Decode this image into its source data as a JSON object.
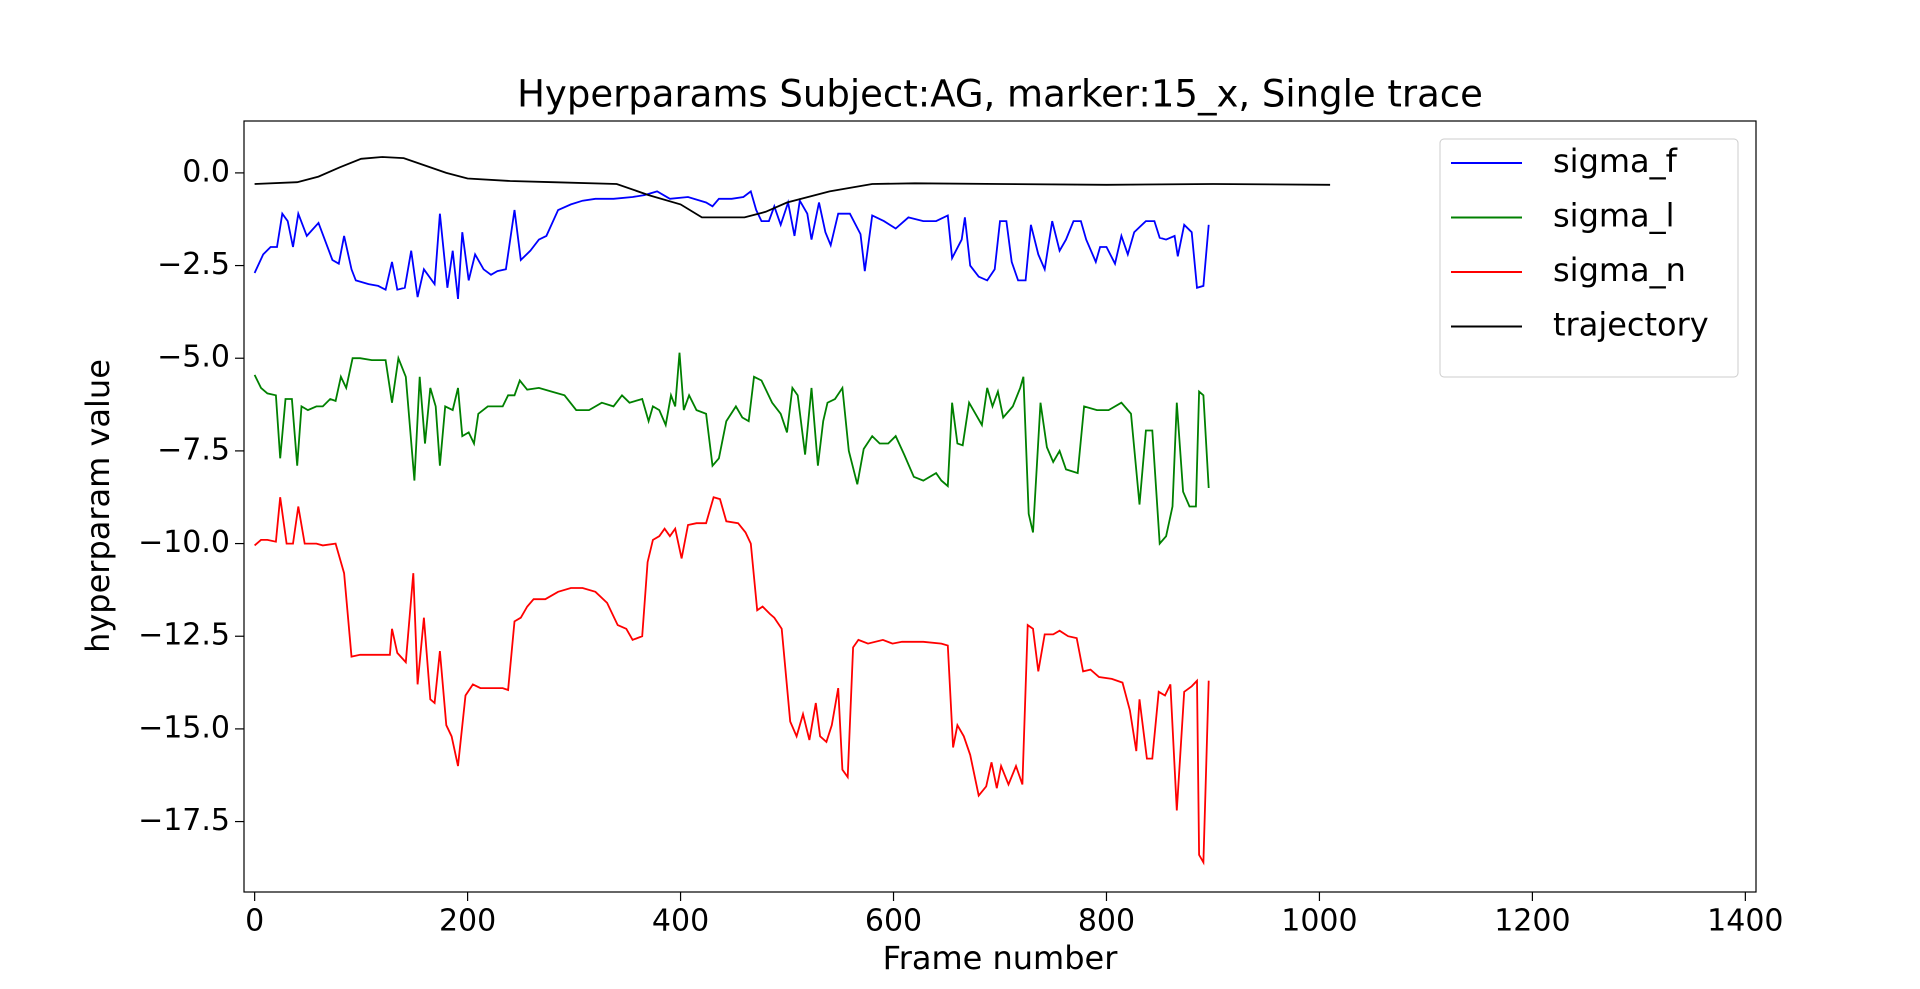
{
  "chart_data": {
    "type": "line",
    "title": "Hyperparams Subject:AG, marker:15_x, Single trace",
    "x_label": "Frame number",
    "y_label": "hyperparam value",
    "xlim": [
      -10,
      1410
    ],
    "ylim": [
      -19.4,
      1.4
    ],
    "xticks": [
      0,
      200,
      400,
      600,
      800,
      1000,
      1200,
      1400
    ],
    "yticks": [
      {
        "value": 0,
        "label": "0.0"
      },
      {
        "value": -2.5,
        "label": "−2.5"
      },
      {
        "value": -5,
        "label": "−5.0"
      },
      {
        "value": -7.5,
        "label": "−7.5"
      },
      {
        "value": -10,
        "label": "−10.0"
      },
      {
        "value": -12.5,
        "label": "−12.5"
      },
      {
        "value": -15,
        "label": "−15.0"
      },
      {
        "value": -17.5,
        "label": "−17.5"
      }
    ],
    "legend": "upper right",
    "series": [
      {
        "name": "sigma_f",
        "color": "#0000ff",
        "x": [
          0,
          8,
          15,
          21,
          26,
          31,
          36,
          41,
          49,
          60,
          73,
          79,
          84,
          91,
          95,
          107,
          116,
          123,
          129,
          134,
          141,
          147,
          153,
          159,
          169,
          174,
          181,
          186,
          191,
          195,
          201,
          207,
          215,
          222,
          228,
          236,
          244,
          250,
          259,
          267,
          274,
          285,
          297,
          308,
          320,
          337,
          355,
          366,
          378,
          390,
          407,
          424,
          430,
          436,
          448,
          459,
          466,
          471,
          476,
          483,
          488,
          494,
          501,
          507,
          512,
          519,
          523,
          530,
          536,
          541,
          548,
          559,
          569,
          573,
          580,
          591,
          602,
          614,
          628,
          640,
          651,
          655,
          664,
          667,
          672,
          680,
          688,
          695,
          700,
          706,
          711,
          717,
          724,
          729,
          736,
          742,
          749,
          756,
          762,
          769,
          776,
          781,
          790,
          794,
          800,
          808,
          814,
          820,
          826,
          837,
          845,
          850,
          856,
          864,
          867,
          873,
          880,
          885,
          891,
          896
        ],
        "values": [
          -2.7,
          -2.2,
          -2.0,
          -2.0,
          -1.1,
          -1.3,
          -2.0,
          -1.1,
          -1.7,
          -1.35,
          -2.35,
          -2.45,
          -1.7,
          -2.6,
          -2.9,
          -3.0,
          -3.05,
          -3.15,
          -2.4,
          -3.15,
          -3.1,
          -2.1,
          -3.35,
          -2.6,
          -3.0,
          -1.1,
          -3.1,
          -2.1,
          -3.4,
          -1.6,
          -2.9,
          -2.2,
          -2.6,
          -2.75,
          -2.65,
          -2.6,
          -1.0,
          -2.35,
          -2.1,
          -1.8,
          -1.7,
          -1.0,
          -0.85,
          -0.75,
          -0.7,
          -0.7,
          -0.65,
          -0.6,
          -0.5,
          -0.7,
          -0.65,
          -0.8,
          -0.9,
          -0.7,
          -0.7,
          -0.65,
          -0.5,
          -1.0,
          -1.3,
          -1.3,
          -0.9,
          -1.4,
          -0.8,
          -1.7,
          -0.75,
          -1.1,
          -1.8,
          -0.8,
          -1.6,
          -1.95,
          -1.1,
          -1.1,
          -1.65,
          -2.65,
          -1.15,
          -1.3,
          -1.5,
          -1.2,
          -1.3,
          -1.3,
          -1.15,
          -2.3,
          -1.8,
          -1.2,
          -2.5,
          -2.8,
          -2.9,
          -2.6,
          -1.3,
          -1.3,
          -2.4,
          -2.9,
          -2.9,
          -1.4,
          -2.2,
          -2.6,
          -1.3,
          -2.1,
          -1.8,
          -1.3,
          -1.3,
          -1.8,
          -2.4,
          -2.0,
          -2.0,
          -2.45,
          -1.7,
          -2.2,
          -1.6,
          -1.3,
          -1.3,
          -1.75,
          -1.8,
          -1.7,
          -2.25,
          -1.4,
          -1.6,
          -3.1,
          -3.05,
          -1.4
        ]
      },
      {
        "name": "sigma_l",
        "color": "#008000",
        "x": [
          0,
          6,
          12,
          20,
          24,
          29,
          35,
          40,
          44,
          50,
          58,
          64,
          71,
          76,
          81,
          86,
          92,
          99,
          110,
          123,
          129,
          135,
          142,
          150,
          155,
          160,
          165,
          170,
          174,
          179,
          186,
          191,
          195,
          201,
          206,
          210,
          219,
          227,
          233,
          238,
          244,
          249,
          256,
          267,
          279,
          291,
          302,
          314,
          326,
          337,
          345,
          352,
          364,
          370,
          374,
          380,
          386,
          391,
          395,
          399,
          403,
          408,
          415,
          424,
          430,
          436,
          443,
          452,
          458,
          464,
          469,
          476,
          486,
          494,
          500,
          505,
          510,
          517,
          523,
          529,
          534,
          538,
          545,
          552,
          558,
          566,
          572,
          580,
          587,
          595,
          602,
          610,
          619,
          628,
          640,
          645,
          651,
          655,
          660,
          665,
          671,
          677,
          683,
          688,
          693,
          698,
          703,
          712,
          719,
          722,
          727,
          731,
          738,
          744,
          750,
          756,
          762,
          773,
          779,
          791,
          802,
          814,
          823,
          831,
          837,
          843,
          850,
          856,
          862,
          866,
          872,
          878,
          884,
          887,
          891,
          896
        ],
        "values": [
          -5.45,
          -5.8,
          -5.95,
          -6.0,
          -7.7,
          -6.1,
          -6.1,
          -7.9,
          -6.3,
          -6.4,
          -6.3,
          -6.3,
          -6.1,
          -6.15,
          -5.5,
          -5.8,
          -5.0,
          -5.0,
          -5.05,
          -5.05,
          -6.2,
          -5.0,
          -5.5,
          -8.3,
          -5.5,
          -7.3,
          -5.8,
          -6.3,
          -7.9,
          -6.3,
          -6.4,
          -5.8,
          -7.1,
          -7.0,
          -7.3,
          -6.5,
          -6.3,
          -6.3,
          -6.3,
          -6.0,
          -6.0,
          -5.6,
          -5.85,
          -5.8,
          -5.9,
          -6.0,
          -6.4,
          -6.4,
          -6.2,
          -6.3,
          -6.0,
          -6.2,
          -6.1,
          -6.7,
          -6.3,
          -6.4,
          -6.8,
          -6.0,
          -6.3,
          -4.85,
          -6.4,
          -6.0,
          -6.4,
          -6.5,
          -7.9,
          -7.7,
          -6.7,
          -6.3,
          -6.6,
          -6.7,
          -5.5,
          -5.6,
          -6.2,
          -6.5,
          -7.0,
          -5.8,
          -6.0,
          -7.6,
          -5.8,
          -7.9,
          -6.7,
          -6.2,
          -6.1,
          -5.8,
          -7.5,
          -8.4,
          -7.45,
          -7.1,
          -7.3,
          -7.3,
          -7.1,
          -7.6,
          -8.2,
          -8.3,
          -8.1,
          -8.3,
          -8.45,
          -6.2,
          -7.3,
          -7.35,
          -6.2,
          -6.5,
          -6.8,
          -5.8,
          -6.3,
          -5.9,
          -6.6,
          -6.3,
          -5.8,
          -5.5,
          -9.2,
          -9.7,
          -6.2,
          -7.4,
          -7.8,
          -7.5,
          -8.0,
          -8.1,
          -6.3,
          -6.4,
          -6.4,
          -6.2,
          -6.5,
          -8.95,
          -6.95,
          -6.95,
          -10.0,
          -9.8,
          -9.0,
          -6.2,
          -8.6,
          -9.0,
          -9.0,
          -5.9,
          -6.0,
          -8.5
        ]
      },
      {
        "name": "sigma_n",
        "color": "#ff0000",
        "x": [
          0,
          6,
          12,
          20,
          24,
          30,
          36,
          41,
          47,
          58,
          64,
          76,
          84,
          91,
          99,
          110,
          127,
          129,
          134,
          142,
          149,
          153,
          159,
          165,
          169,
          174,
          180,
          185,
          191,
          198,
          205,
          212,
          221,
          233,
          238,
          244,
          250,
          256,
          262,
          273,
          285,
          297,
          308,
          320,
          331,
          341,
          349,
          355,
          364,
          369,
          374,
          380,
          385,
          390,
          395,
          401,
          407,
          415,
          424,
          431,
          437,
          443,
          454,
          461,
          466,
          472,
          477,
          484,
          488,
          495,
          503,
          509,
          515,
          521,
          527,
          531,
          537,
          542,
          548,
          552,
          557,
          562,
          567,
          576,
          590,
          599,
          608,
          628,
          645,
          651,
          656,
          660,
          666,
          672,
          680,
          687,
          692,
          697,
          701,
          708,
          715,
          721,
          726,
          731,
          736,
          742,
          750,
          756,
          764,
          772,
          778,
          785,
          793,
          805,
          815,
          822,
          828,
          831,
          838,
          843,
          849,
          855,
          860,
          866,
          873,
          880,
          885,
          887,
          891,
          896
        ],
        "values": [
          -10.05,
          -9.9,
          -9.9,
          -9.95,
          -8.75,
          -10.0,
          -10.0,
          -9.0,
          -10.0,
          -10.0,
          -10.05,
          -10.0,
          -10.8,
          -13.05,
          -13.0,
          -13.0,
          -13.0,
          -12.3,
          -12.95,
          -13.2,
          -10.8,
          -13.8,
          -12.0,
          -14.2,
          -14.3,
          -12.9,
          -14.9,
          -15.2,
          -16.0,
          -14.1,
          -13.8,
          -13.9,
          -13.9,
          -13.9,
          -13.95,
          -12.1,
          -12.0,
          -11.7,
          -11.5,
          -11.5,
          -11.3,
          -11.2,
          -11.2,
          -11.3,
          -11.6,
          -12.2,
          -12.3,
          -12.6,
          -12.5,
          -10.5,
          -9.9,
          -9.8,
          -9.6,
          -9.8,
          -9.6,
          -10.4,
          -9.5,
          -9.45,
          -9.45,
          -8.75,
          -8.8,
          -9.4,
          -9.45,
          -9.7,
          -10.0,
          -11.8,
          -11.7,
          -11.9,
          -12.0,
          -12.3,
          -14.8,
          -15.2,
          -14.6,
          -15.3,
          -14.3,
          -15.2,
          -15.35,
          -14.9,
          -13.9,
          -16.1,
          -16.3,
          -12.8,
          -12.6,
          -12.7,
          -12.6,
          -12.7,
          -12.65,
          -12.65,
          -12.7,
          -12.75,
          -15.5,
          -14.9,
          -15.2,
          -15.7,
          -16.8,
          -16.55,
          -15.9,
          -16.6,
          -16.0,
          -16.5,
          -16.0,
          -16.5,
          -12.2,
          -12.3,
          -13.45,
          -12.45,
          -12.45,
          -12.35,
          -12.5,
          -12.55,
          -13.45,
          -13.4,
          -13.6,
          -13.65,
          -13.75,
          -14.5,
          -15.6,
          -14.2,
          -15.8,
          -15.8,
          -14.0,
          -14.1,
          -13.8,
          -17.2,
          -14.0,
          -13.85,
          -13.7,
          -18.4,
          -18.6,
          -13.7
        ]
      },
      {
        "name": "trajectory",
        "color": "#000000",
        "x": [
          0,
          40,
          60,
          80,
          100,
          120,
          140,
          160,
          180,
          200,
          240,
          280,
          340,
          370,
          400,
          420,
          460,
          480,
          500,
          540,
          580,
          620,
          700,
          800,
          900,
          1010
        ],
        "values": [
          -0.3,
          -0.25,
          -0.1,
          0.15,
          0.38,
          0.43,
          0.4,
          0.2,
          0.0,
          -0.15,
          -0.22,
          -0.25,
          -0.3,
          -0.6,
          -0.85,
          -1.2,
          -1.2,
          -1.05,
          -0.8,
          -0.5,
          -0.3,
          -0.28,
          -0.3,
          -0.32,
          -0.3,
          -0.32
        ]
      }
    ]
  }
}
